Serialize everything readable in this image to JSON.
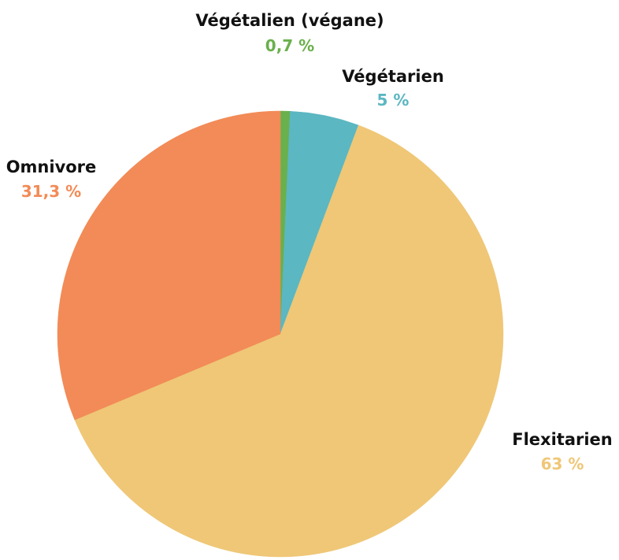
{
  "chart_data": {
    "type": "pie",
    "slices": [
      {
        "label": "Végétalien (végane)",
        "value": 0.7,
        "value_label": "0,7 %",
        "color": "#6ab04c"
      },
      {
        "label": "Végétarien",
        "value": 5,
        "value_label": "5 %",
        "color": "#5bb7c2"
      },
      {
        "label": "Flexitarien",
        "value": 63,
        "value_label": "63 %",
        "color": "#efc777"
      },
      {
        "label": "Omnivore",
        "value": 31.3,
        "value_label": "31,3 %",
        "color": "#f28b57"
      }
    ],
    "start_angle_deg": 0,
    "direction": "clockwise",
    "legend": "none"
  }
}
